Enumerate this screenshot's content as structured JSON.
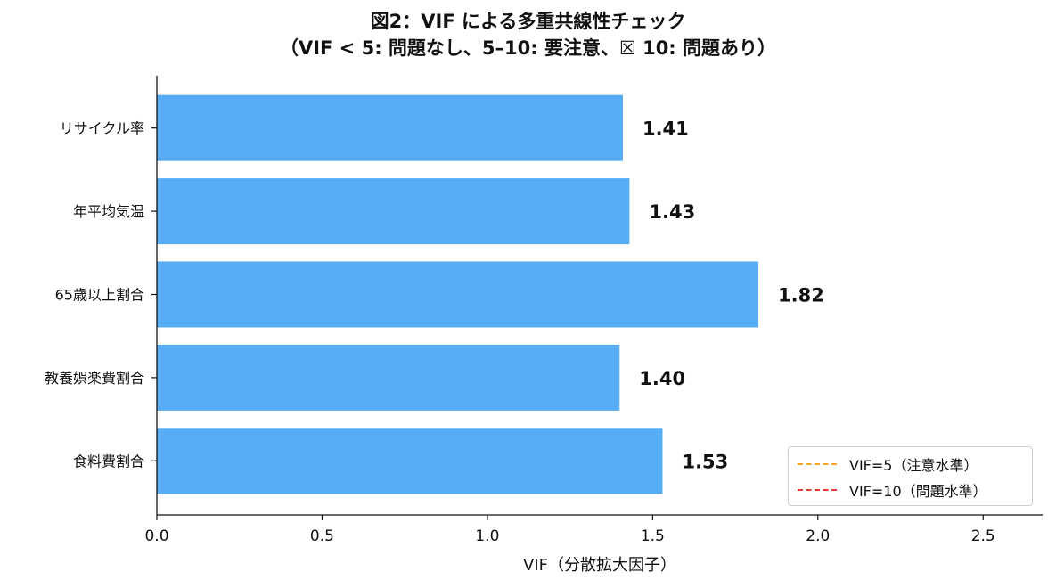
{
  "chart_data": {
    "type": "bar",
    "orientation": "horizontal",
    "title_line1": "図2：VIF による多重共線性チェック",
    "title_line2": "（VIF < 5: 問題なし、5–10: 要注意、☒ 10: 問題あり）",
    "xlabel": "VIF（分散拡大因子）",
    "ylabel": "",
    "xlim": [
      0,
      2.68
    ],
    "xticks": [
      "0.0",
      "0.5",
      "1.0",
      "1.5",
      "2.0",
      "2.5"
    ],
    "xtick_values": [
      0,
      0.5,
      1.0,
      1.5,
      2.0,
      2.5
    ],
    "categories": [
      "リサイクル率",
      "年平均気温",
      "65歳以上割合",
      "教養娯楽費割合",
      "食料費割合"
    ],
    "values": [
      1.41,
      1.43,
      1.82,
      1.4,
      1.53
    ],
    "data_labels": [
      "1.41",
      "1.43",
      "1.82",
      "1.40",
      "1.53"
    ],
    "bar_color": "#57adf5",
    "grid": false,
    "legend": {
      "placement": "bottom-right",
      "entries": [
        {
          "label": "VIF=5（注意水準）",
          "color": "#f5a623",
          "style": "dashed"
        },
        {
          "label": "VIF=10（問題水準）",
          "color": "#e53935",
          "style": "dashed"
        }
      ]
    }
  }
}
